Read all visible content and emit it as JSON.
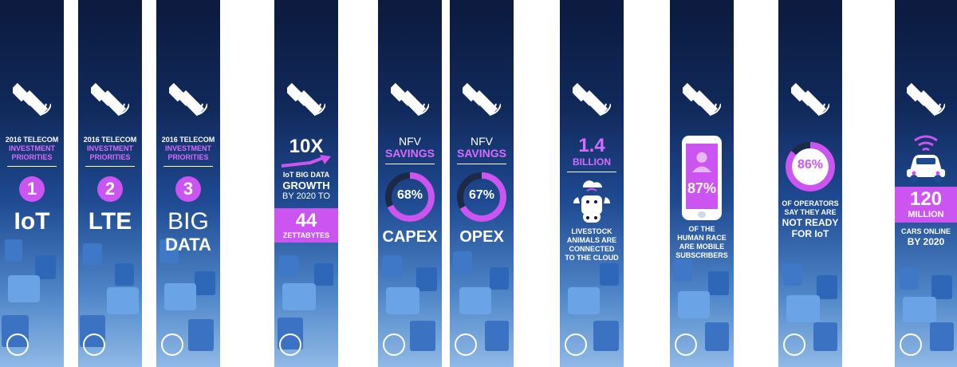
{
  "banners": [
    {
      "kind": "priority",
      "line1": "2016 TELECOM",
      "line2": "INVESTMENT",
      "line3": "PRIORITIES",
      "number": "1",
      "main": "IoT"
    },
    {
      "kind": "priority",
      "line1": "2016 TELECOM",
      "line2": "INVESTMENT",
      "line3": "PRIORITIES",
      "number": "2",
      "main": "LTE"
    },
    {
      "kind": "priority",
      "line1": "2016 TELECOM",
      "line2": "INVESTMENT",
      "line3": "PRIORITIES",
      "number": "3",
      "main1": "BIG",
      "main2": "DATA"
    },
    {
      "kind": "growth",
      "multiplier": "10X",
      "line1": "IoT BIG DATA",
      "line2": "GROWTH",
      "line3": "BY 2020 TO",
      "value": "44",
      "unit": "ZETTABYTES"
    },
    {
      "kind": "nfv",
      "title1": "NFV",
      "title2": "SAVINGS",
      "percent": "68%",
      "fraction": 0.68,
      "label": "CAPEX"
    },
    {
      "kind": "nfv",
      "title1": "NFV",
      "title2": "SAVINGS",
      "percent": "67%",
      "fraction": 0.67,
      "label": "OPEX"
    },
    {
      "kind": "livestock",
      "value": "1.4",
      "unit": "BILLION",
      "line1": "LIVESTOCK",
      "line2": "ANIMALS ARE",
      "line3": "CONNECTED",
      "line4": "TO THE CLOUD"
    },
    {
      "kind": "mobile",
      "percent": "87%",
      "line1": "OF THE",
      "line2": "HUMAN RACE",
      "line3": "ARE MOBILE",
      "line4": "SUBSCRIBERS"
    },
    {
      "kind": "operators",
      "percent": "86%",
      "fraction": 0.86,
      "line1": "OF OPERATORS",
      "line2": "SAY THEY ARE",
      "line3": "NOT READY",
      "line4": "FOR IoT"
    },
    {
      "kind": "cars",
      "value": "120",
      "unit": "MILLION",
      "line1": "CARS ONLINE",
      "line2": "BY 2020"
    }
  ],
  "colors": {
    "accent": "#cc55f2",
    "accent_text": "#d86bff",
    "bg_top": "#0b1a3d",
    "bg_bottom": "#8fb9e6"
  }
}
